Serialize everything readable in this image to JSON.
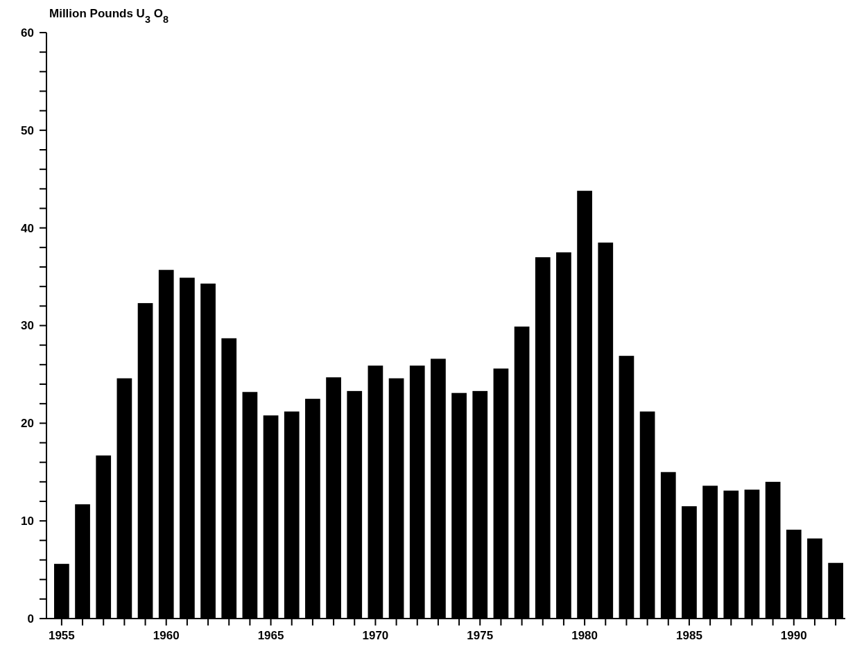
{
  "chart_data": {
    "type": "bar",
    "ylabel": "Million Pounds U$_{3}$O$_{8}$",
    "categories": [
      "1955",
      null,
      null,
      null,
      null,
      "1960",
      null,
      null,
      null,
      null,
      "1965",
      null,
      null,
      null,
      null,
      "1970",
      null,
      null,
      null,
      null,
      "1975",
      null,
      null,
      null,
      null,
      "1980",
      null,
      null,
      null,
      null,
      "1985",
      null,
      null,
      null,
      null,
      "1990",
      null,
      null
    ],
    "values": [
      5.6,
      11.7,
      16.7,
      24.6,
      32.3,
      35.7,
      34.9,
      34.3,
      28.7,
      23.2,
      20.8,
      21.2,
      22.5,
      24.7,
      23.3,
      25.9,
      24.6,
      25.9,
      26.6,
      23.1,
      23.3,
      25.6,
      29.9,
      37.0,
      37.5,
      43.8,
      38.5,
      26.9,
      21.2,
      15.0,
      11.5,
      13.6,
      13.1,
      13.2,
      14.0,
      9.1,
      8.2,
      5.7
    ],
    "color": "#000000",
    "ylim": [
      0,
      60
    ],
    "yticks": [
      0,
      {
        "value": 2,
        "label": null
      },
      {
        "value": 4,
        "label": null
      },
      {
        "value": 6,
        "label": null
      },
      {
        "value": 8,
        "label": null
      },
      10,
      {
        "value": 12,
        "label": null
      },
      {
        "value": 14,
        "label": null
      },
      {
        "value": 16,
        "label": null
      },
      {
        "value": 18,
        "label": null
      },
      20,
      {
        "value": 22,
        "label": null
      },
      {
        "value": 24,
        "label": null
      },
      {
        "value": 26,
        "label": null
      },
      {
        "value": 28,
        "label": null
      },
      30,
      {
        "value": 32,
        "label": null
      },
      {
        "value": 34,
        "label": null
      },
      {
        "value": 36,
        "label": null
      },
      {
        "value": 38,
        "label": null
      },
      40,
      {
        "value": 42,
        "label": null
      },
      {
        "value": 44,
        "label": null
      },
      {
        "value": 46,
        "label": null
      },
      {
        "value": 48,
        "label": null
      },
      50,
      {
        "value": 52,
        "label": null
      },
      {
        "value": 54,
        "label": null
      },
      {
        "value": 56,
        "label": null
      },
      {
        "value": 58,
        "label": null
      },
      60
    ],
    "grid": false
  }
}
